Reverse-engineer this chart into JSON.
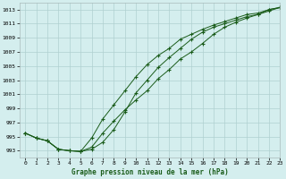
{
  "title": "Graphe pression niveau de la mer (hPa)",
  "bg_color": "#d4eeee",
  "grid_color": "#b0d0d0",
  "line_color": "#1a5c1a",
  "xlim": [
    -0.5,
    23
  ],
  "ylim": [
    992.0,
    1014.0
  ],
  "yticks": [
    993,
    995,
    997,
    999,
    1001,
    1003,
    1005,
    1007,
    1009,
    1011,
    1013
  ],
  "xticks": [
    0,
    1,
    2,
    3,
    4,
    5,
    6,
    7,
    8,
    9,
    10,
    11,
    12,
    13,
    14,
    15,
    16,
    17,
    18,
    19,
    20,
    21,
    22,
    23
  ],
  "series1_x": [
    0,
    1,
    2,
    3,
    4,
    5,
    6,
    7,
    8,
    9,
    10,
    11,
    12,
    13,
    14,
    15,
    16,
    17,
    18,
    19,
    20,
    21,
    22,
    23
  ],
  "series1_y": [
    995.5,
    994.8,
    994.4,
    993.2,
    993.0,
    992.9,
    993.5,
    995.5,
    997.2,
    998.8,
    1000.2,
    1001.5,
    1003.2,
    1004.5,
    1006.0,
    1007.0,
    1008.2,
    1009.5,
    1010.5,
    1011.2,
    1011.8,
    1012.3,
    1013.0,
    1013.3
  ],
  "series2_x": [
    0,
    1,
    2,
    3,
    4,
    5,
    6,
    7,
    8,
    9,
    10,
    11,
    12,
    13,
    14,
    15,
    16,
    17,
    18,
    19,
    20,
    21,
    22,
    23
  ],
  "series2_y": [
    995.5,
    994.8,
    994.4,
    993.2,
    993.0,
    992.9,
    994.8,
    997.5,
    999.5,
    1001.5,
    1003.5,
    1005.2,
    1006.5,
    1007.5,
    1008.8,
    1009.5,
    1010.2,
    1010.8,
    1011.3,
    1011.8,
    1012.3,
    1012.5,
    1013.0,
    1013.3
  ],
  "series3_x": [
    0,
    1,
    2,
    3,
    4,
    5,
    6,
    7,
    8,
    9,
    10,
    11,
    12,
    13,
    14,
    15,
    16,
    17,
    18,
    19,
    20,
    21,
    22,
    23
  ],
  "series3_y": [
    995.5,
    994.8,
    994.4,
    993.2,
    993.0,
    992.9,
    993.2,
    994.2,
    996.0,
    998.5,
    1001.2,
    1003.0,
    1004.8,
    1006.2,
    1007.5,
    1008.8,
    1009.8,
    1010.5,
    1011.0,
    1011.5,
    1012.0,
    1012.3,
    1012.8,
    1013.3
  ]
}
